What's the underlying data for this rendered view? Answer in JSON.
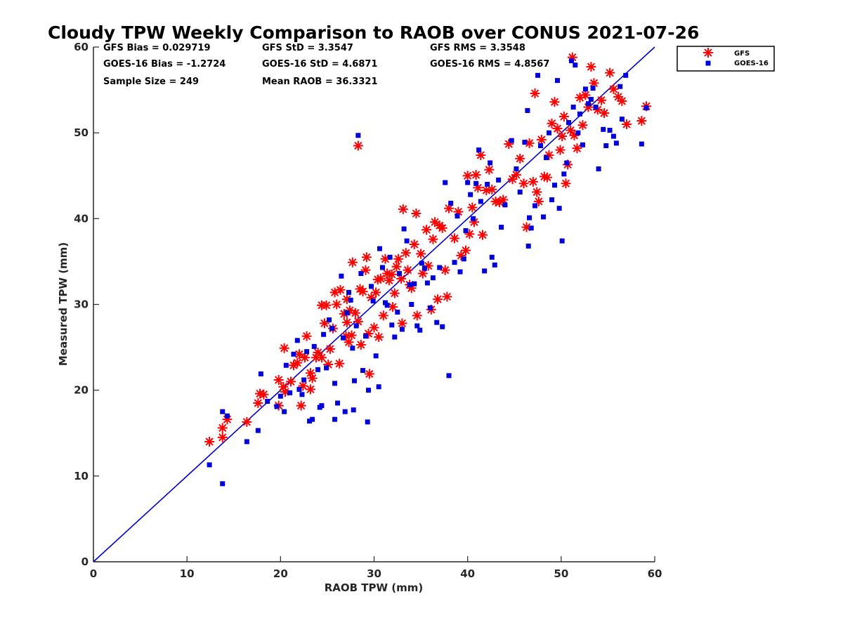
{
  "chart_data": {
    "type": "scatter",
    "title": "Cloudy TPW Weekly Comparison to RAOB over CONUS 2021-07-26",
    "xlabel": "RAOB TPW (mm)",
    "ylabel": "Measured TPW (mm)",
    "xlim": [
      0,
      60
    ],
    "ylim": [
      0,
      60
    ],
    "xticks": [
      "0",
      "10",
      "20",
      "30",
      "40",
      "50",
      "60"
    ],
    "yticks": [
      "0",
      "10",
      "20",
      "30",
      "40",
      "50",
      "60"
    ],
    "grid": false,
    "legend_position": "outside-top-right",
    "reference_line": {
      "type": "one-to-one",
      "color": "#0000cc"
    },
    "stats": {
      "gfs_bias": "GFS Bias = 0.029719",
      "gfs_std": "GFS StD = 3.3547",
      "gfs_rms": "GFS RMS = 3.3548",
      "goes_bias": "GOES-16 Bias = -1.2724",
      "goes_std": "GOES-16 StD = 4.6871",
      "goes_rms": "GOES-16 RMS = 4.8567",
      "sample_size": "Sample Size = 249",
      "mean_raob": "Mean RAOB = 36.3321"
    },
    "series": [
      {
        "name": "GFS",
        "marker": "asterisk",
        "color": "#ff0000",
        "points": [
          [
            12.4,
            14.0
          ],
          [
            13.8,
            15.6
          ],
          [
            13.8,
            14.5
          ],
          [
            14.3,
            16.6
          ],
          [
            16.4,
            16.3
          ],
          [
            17.6,
            18.5
          ],
          [
            17.8,
            19.6
          ],
          [
            18.2,
            19.5
          ],
          [
            19.8,
            18.2
          ],
          [
            19.8,
            21.2
          ],
          [
            20.3,
            20.4
          ],
          [
            20.4,
            24.9
          ],
          [
            20.5,
            19.8
          ],
          [
            21.1,
            21.0
          ],
          [
            21.4,
            22.9
          ],
          [
            21.8,
            23.2
          ],
          [
            22.0,
            24.2
          ],
          [
            22.2,
            18.2
          ],
          [
            22.4,
            20.5
          ],
          [
            22.6,
            23.8
          ],
          [
            22.8,
            26.3
          ],
          [
            23.2,
            22.0
          ],
          [
            23.2,
            20.1
          ],
          [
            23.4,
            21.4
          ],
          [
            23.8,
            23.8
          ],
          [
            24.0,
            24.4
          ],
          [
            24.4,
            23.8
          ],
          [
            24.4,
            29.9
          ],
          [
            24.7,
            27.8
          ],
          [
            24.9,
            29.9
          ],
          [
            25.1,
            23.0
          ],
          [
            25.3,
            24.8
          ],
          [
            25.6,
            27.2
          ],
          [
            25.8,
            31.4
          ],
          [
            26.0,
            30.0
          ],
          [
            26.3,
            23.1
          ],
          [
            26.4,
            31.7
          ],
          [
            26.8,
            28.9
          ],
          [
            27.0,
            26.3
          ],
          [
            27.1,
            27.9
          ],
          [
            27.1,
            30.6
          ],
          [
            27.3,
            25.6
          ],
          [
            27.4,
            29.3
          ],
          [
            27.6,
            26.4
          ],
          [
            27.7,
            34.9
          ],
          [
            28.0,
            29.0
          ],
          [
            28.3,
            48.5
          ],
          [
            28.3,
            28.0
          ],
          [
            28.5,
            31.8
          ],
          [
            28.6,
            25.3
          ],
          [
            28.8,
            31.5
          ],
          [
            29.1,
            34.0
          ],
          [
            29.2,
            35.5
          ],
          [
            29.4,
            26.6
          ],
          [
            29.5,
            21.9
          ],
          [
            29.7,
            30.8
          ],
          [
            30.0,
            27.3
          ],
          [
            30.2,
            31.4
          ],
          [
            30.4,
            32.9
          ],
          [
            30.5,
            26.2
          ],
          [
            30.7,
            33.0
          ],
          [
            31.0,
            28.7
          ],
          [
            31.2,
            35.3
          ],
          [
            31.4,
            33.6
          ],
          [
            31.6,
            32.8
          ],
          [
            31.9,
            33.5
          ],
          [
            32.0,
            29.7
          ],
          [
            32.2,
            31.3
          ],
          [
            32.4,
            34.4
          ],
          [
            32.6,
            35.3
          ],
          [
            32.9,
            33.0
          ],
          [
            33.0,
            27.8
          ],
          [
            33.1,
            41.1
          ],
          [
            33.4,
            36.0
          ],
          [
            33.6,
            34.0
          ],
          [
            33.8,
            32.3
          ],
          [
            34.0,
            31.9
          ],
          [
            34.3,
            37.0
          ],
          [
            34.5,
            40.6
          ],
          [
            34.6,
            28.7
          ],
          [
            35.0,
            35.9
          ],
          [
            35.2,
            33.6
          ],
          [
            35.6,
            38.7
          ],
          [
            35.8,
            34.5
          ],
          [
            36.1,
            29.4
          ],
          [
            36.3,
            37.6
          ],
          [
            36.5,
            39.6
          ],
          [
            36.8,
            30.6
          ],
          [
            37.0,
            39.2
          ],
          [
            37.3,
            38.9
          ],
          [
            37.6,
            34.0
          ],
          [
            37.8,
            30.9
          ],
          [
            38.0,
            41.2
          ],
          [
            38.6,
            37.7
          ],
          [
            39.0,
            40.8
          ],
          [
            39.3,
            35.7
          ],
          [
            39.8,
            36.3
          ],
          [
            40.0,
            45.0
          ],
          [
            40.2,
            38.2
          ],
          [
            40.5,
            41.3
          ],
          [
            40.7,
            39.6
          ],
          [
            40.9,
            45.1
          ],
          [
            41.1,
            43.6
          ],
          [
            41.4,
            47.4
          ],
          [
            41.6,
            38.1
          ],
          [
            42.0,
            43.3
          ],
          [
            42.3,
            45.7
          ],
          [
            42.6,
            43.4
          ],
          [
            43.0,
            42.0
          ],
          [
            43.4,
            41.9
          ],
          [
            43.8,
            42.2
          ],
          [
            44.4,
            48.7
          ],
          [
            44.8,
            44.6
          ],
          [
            45.2,
            45.1
          ],
          [
            45.6,
            47.0
          ],
          [
            46.0,
            44.1
          ],
          [
            46.3,
            39.0
          ],
          [
            46.6,
            48.8
          ],
          [
            47.0,
            44.3
          ],
          [
            47.2,
            54.6
          ],
          [
            47.4,
            43.1
          ],
          [
            47.6,
            42.0
          ],
          [
            47.9,
            49.2
          ],
          [
            48.2,
            44.9
          ],
          [
            48.5,
            44.8
          ],
          [
            48.7,
            47.4
          ],
          [
            49.0,
            51.1
          ],
          [
            49.3,
            53.6
          ],
          [
            49.6,
            50.5
          ],
          [
            49.9,
            48.0
          ],
          [
            50.1,
            49.6
          ],
          [
            50.3,
            51.9
          ],
          [
            50.5,
            44.1
          ],
          [
            50.7,
            46.3
          ],
          [
            51.0,
            50.3
          ],
          [
            51.2,
            58.8
          ],
          [
            51.4,
            49.7
          ],
          [
            51.7,
            48.2
          ],
          [
            52.0,
            54.1
          ],
          [
            52.3,
            50.9
          ],
          [
            52.6,
            54.4
          ],
          [
            52.9,
            53.0
          ],
          [
            53.2,
            57.7
          ],
          [
            53.5,
            55.8
          ],
          [
            53.9,
            52.7
          ],
          [
            54.3,
            53.8
          ],
          [
            54.6,
            52.3
          ],
          [
            55.2,
            57.0
          ],
          [
            55.6,
            55.1
          ],
          [
            56.1,
            54.2
          ],
          [
            56.5,
            53.7
          ],
          [
            57.0,
            51.0
          ],
          [
            58.6,
            51.4
          ],
          [
            59.1,
            53.1
          ]
        ]
      },
      {
        "name": "GOES-16",
        "marker": "square",
        "color": "#0000dd",
        "points": [
          [
            12.4,
            11.3
          ],
          [
            13.8,
            9.1
          ],
          [
            13.8,
            17.5
          ],
          [
            14.3,
            17.0
          ],
          [
            16.4,
            14.0
          ],
          [
            17.6,
            15.3
          ],
          [
            17.9,
            21.9
          ],
          [
            18.6,
            18.7
          ],
          [
            19.6,
            18.1
          ],
          [
            20.0,
            19.3
          ],
          [
            20.4,
            17.5
          ],
          [
            20.6,
            22.9
          ],
          [
            21.0,
            19.7
          ],
          [
            21.4,
            24.2
          ],
          [
            21.8,
            25.8
          ],
          [
            22.0,
            20.1
          ],
          [
            22.3,
            19.5
          ],
          [
            22.5,
            21.2
          ],
          [
            22.8,
            24.5
          ],
          [
            23.1,
            16.4
          ],
          [
            23.4,
            16.6
          ],
          [
            23.6,
            25.1
          ],
          [
            24.0,
            22.4
          ],
          [
            24.2,
            18.0
          ],
          [
            24.4,
            18.2
          ],
          [
            24.6,
            26.5
          ],
          [
            24.9,
            22.6
          ],
          [
            25.2,
            28.2
          ],
          [
            25.5,
            27.2
          ],
          [
            25.8,
            20.8
          ],
          [
            25.8,
            16.6
          ],
          [
            26.1,
            18.5
          ],
          [
            26.5,
            33.3
          ],
          [
            26.7,
            26.1
          ],
          [
            26.9,
            17.5
          ],
          [
            27.1,
            29.0
          ],
          [
            27.3,
            31.4
          ],
          [
            27.5,
            30.5
          ],
          [
            27.7,
            24.9
          ],
          [
            27.8,
            17.7
          ],
          [
            27.9,
            21.1
          ],
          [
            28.1,
            27.5
          ],
          [
            28.3,
            49.7
          ],
          [
            28.6,
            33.6
          ],
          [
            28.8,
            22.3
          ],
          [
            29.1,
            26.3
          ],
          [
            29.3,
            16.3
          ],
          [
            29.4,
            20.0
          ],
          [
            29.7,
            32.1
          ],
          [
            29.9,
            30.4
          ],
          [
            30.2,
            24.0
          ],
          [
            30.5,
            20.4
          ],
          [
            30.6,
            36.5
          ],
          [
            30.9,
            34.3
          ],
          [
            31.2,
            30.2
          ],
          [
            31.4,
            29.9
          ],
          [
            31.7,
            35.5
          ],
          [
            31.9,
            27.6
          ],
          [
            32.2,
            26.2
          ],
          [
            32.5,
            29.1
          ],
          [
            32.7,
            33.6
          ],
          [
            33.0,
            27.1
          ],
          [
            33.2,
            38.8
          ],
          [
            33.5,
            37.4
          ],
          [
            33.8,
            32.3
          ],
          [
            34.0,
            30.0
          ],
          [
            34.3,
            32.4
          ],
          [
            34.6,
            27.5
          ],
          [
            34.9,
            27.0
          ],
          [
            35.1,
            34.8
          ],
          [
            35.4,
            34.2
          ],
          [
            35.7,
            32.5
          ],
          [
            36.0,
            29.6
          ],
          [
            36.3,
            33.1
          ],
          [
            36.7,
            27.9
          ],
          [
            37.0,
            34.3
          ],
          [
            37.3,
            27.4
          ],
          [
            37.6,
            44.2
          ],
          [
            38.0,
            21.7
          ],
          [
            38.2,
            41.8
          ],
          [
            38.6,
            34.9
          ],
          [
            38.9,
            40.3
          ],
          [
            39.2,
            33.8
          ],
          [
            39.6,
            35.3
          ],
          [
            39.8,
            38.6
          ],
          [
            40.0,
            44.2
          ],
          [
            40.3,
            42.8
          ],
          [
            40.6,
            40.0
          ],
          [
            40.9,
            44.1
          ],
          [
            41.2,
            48.0
          ],
          [
            41.4,
            42.0
          ],
          [
            41.8,
            33.9
          ],
          [
            42.1,
            44.0
          ],
          [
            42.4,
            46.5
          ],
          [
            42.6,
            35.5
          ],
          [
            42.9,
            34.6
          ],
          [
            43.3,
            44.5
          ],
          [
            43.6,
            39.0
          ],
          [
            44.0,
            41.6
          ],
          [
            44.7,
            49.1
          ],
          [
            45.2,
            45.8
          ],
          [
            45.6,
            43.1
          ],
          [
            46.1,
            48.9
          ],
          [
            46.4,
            52.6
          ],
          [
            46.5,
            36.8
          ],
          [
            46.6,
            40.1
          ],
          [
            46.8,
            38.9
          ],
          [
            47.2,
            41.5
          ],
          [
            47.5,
            56.7
          ],
          [
            47.8,
            48.5
          ],
          [
            48.1,
            40.2
          ],
          [
            48.4,
            47.1
          ],
          [
            48.7,
            50.0
          ],
          [
            49.0,
            42.2
          ],
          [
            49.3,
            43.9
          ],
          [
            49.6,
            56.1
          ],
          [
            49.8,
            41.2
          ],
          [
            50.1,
            37.4
          ],
          [
            50.3,
            45.2
          ],
          [
            50.6,
            46.5
          ],
          [
            50.8,
            51.2
          ],
          [
            51.1,
            58.4
          ],
          [
            51.3,
            53.0
          ],
          [
            51.5,
            57.9
          ],
          [
            51.8,
            50.0
          ],
          [
            52.0,
            52.2
          ],
          [
            52.3,
            48.6
          ],
          [
            52.6,
            55.1
          ],
          [
            52.9,
            53.4
          ],
          [
            53.2,
            53.9
          ],
          [
            53.4,
            55.2
          ],
          [
            53.7,
            53.0
          ],
          [
            54.0,
            45.8
          ],
          [
            54.5,
            50.4
          ],
          [
            54.8,
            48.5
          ],
          [
            55.2,
            50.3
          ],
          [
            55.6,
            49.6
          ],
          [
            55.9,
            48.8
          ],
          [
            56.3,
            55.4
          ],
          [
            56.5,
            51.6
          ],
          [
            56.9,
            56.7
          ],
          [
            58.6,
            48.7
          ],
          [
            59.1,
            52.9
          ]
        ]
      }
    ]
  }
}
